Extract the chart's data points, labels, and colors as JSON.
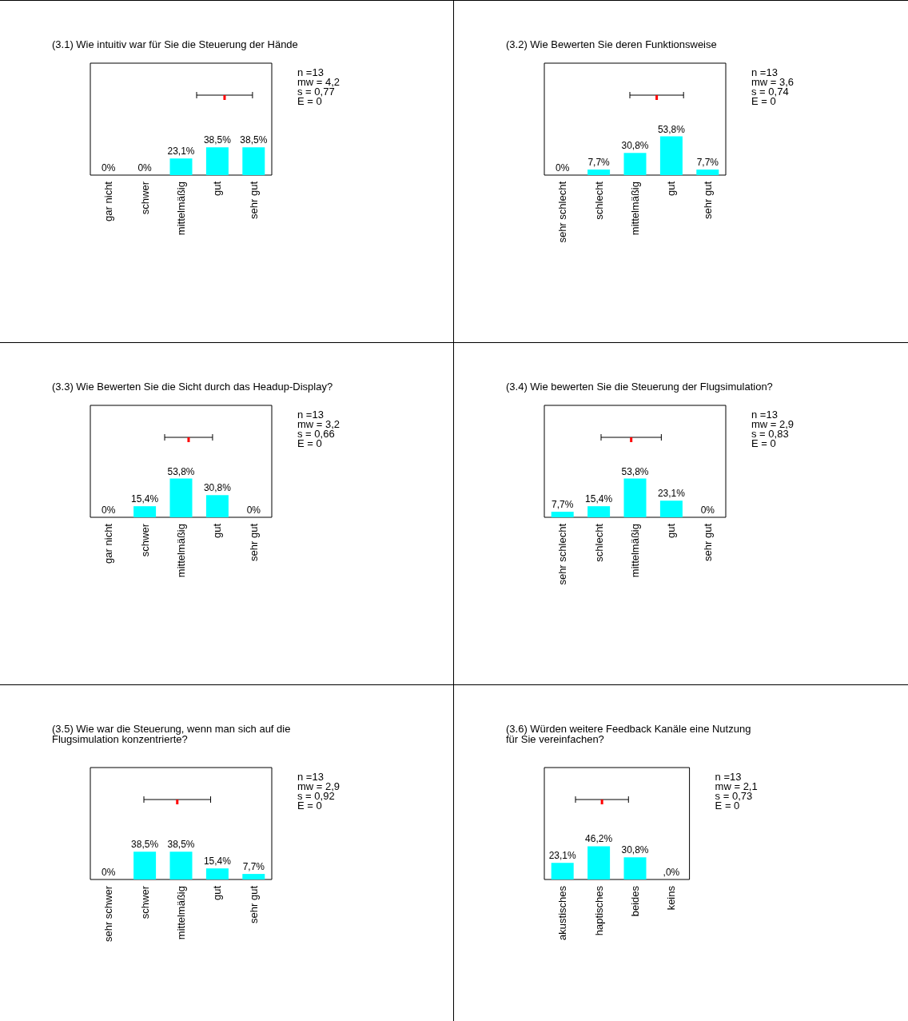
{
  "chart_data": [
    {
      "type": "bar",
      "title": "(3.1) Wie intuitiv war für Sie die Steuerung der Hände",
      "categories": [
        "gar nicht",
        "schwer",
        "mittelmäßig",
        "gut",
        "sehr gut"
      ],
      "tick_labels": "x",
      "annotations": [
        "n =13",
        "mw = 4,2",
        "s = 0,77",
        "E = 0"
      ],
      "series": [
        {
          "color": "#00ffff",
          "values": [
            0,
            0,
            23.1,
            38.5,
            38.5
          ],
          "value_labels": [
            "0%",
            "0%",
            "23,1%",
            "38,5%",
            "38,5%"
          ]
        }
      ]
    },
    {
      "type": "bar",
      "title": "(3.2) Wie Bewerten Sie deren Funktionsweise",
      "categories": [
        "sehr schlecht",
        "schlecht",
        "mittelmäßig",
        "gut",
        "sehr gut"
      ],
      "tick_labels": "x",
      "annotations": [
        "n =13",
        "mw = 3,6",
        "s = 0,74",
        "E = 0"
      ],
      "series": [
        {
          "color": "#00ffff",
          "values": [
            0,
            7.7,
            30.8,
            53.8,
            7.7
          ],
          "value_labels": [
            "0%",
            "7,7%",
            "30,8%",
            "53,8%",
            "7,7%"
          ]
        }
      ]
    },
    {
      "type": "bar",
      "title": "(3.3) Wie Bewerten Sie die Sicht durch das Headup-Display?",
      "categories": [
        "gar nicht",
        "schwer",
        "mittelmäßig",
        "gut",
        "sehr gut"
      ],
      "tick_labels": "x",
      "annotations": [
        "n =13",
        "mw = 3,2",
        "s = 0,66",
        "E = 0"
      ],
      "series": [
        {
          "color": "#00ffff",
          "values": [
            0,
            15.4,
            53.8,
            30.8,
            0
          ],
          "value_labels": [
            "0%",
            "15,4%",
            "53,8%",
            "30,8%",
            "0%"
          ]
        }
      ]
    },
    {
      "type": "bar",
      "title": "(3.4) Wie bewerten Sie die Steuerung der Flugsimulation?",
      "categories": [
        "sehr schlecht",
        "schlecht",
        "mittelmäßig",
        "gut",
        "sehr gut"
      ],
      "tick_labels": "x",
      "annotations": [
        "n =13",
        "mw = 2,9",
        "s = 0,83",
        "E = 0"
      ],
      "series": [
        {
          "color": "#00ffff",
          "values": [
            7.7,
            15.4,
            53.8,
            23.1,
            0
          ],
          "value_labels": [
            "7,7%",
            "15,4%",
            "53,8%",
            "23,1%",
            "0%"
          ]
        }
      ]
    },
    {
      "type": "bar",
      "title": "(3.5) Wie war die Steuerung, wenn man sich auf die\nFlugsimulation konzentrierte?",
      "categories": [
        "sehr schwer",
        "schwer",
        "mittelmäßig",
        "gut",
        "sehr gut"
      ],
      "tick_labels": "x",
      "annotations": [
        "n =13",
        "mw = 2,9",
        "s = 0,92",
        "E = 0"
      ],
      "series": [
        {
          "color": "#00ffff",
          "values": [
            0,
            38.5,
            38.5,
            15.4,
            7.7
          ],
          "value_labels": [
            "0%",
            "38,5%",
            "38,5%",
            "15,4%",
            "7,7%"
          ]
        }
      ]
    },
    {
      "type": "bar",
      "title": "(3.6) Würden weitere Feedback Kanäle eine Nutzung\nfür Sie vereinfachen?",
      "categories": [
        "akustisches",
        "haptisches",
        "beides",
        "keins"
      ],
      "tick_labels": "x",
      "annotations": [
        "n =13",
        "mw = 2,1",
        "s = 0,73",
        "E = 0"
      ],
      "series": [
        {
          "color": "#00ffff",
          "values": [
            23.1,
            46.2,
            30.8,
            0
          ],
          "value_labels": [
            "23,1%",
            "46,2%",
            "30,8%",
            ",0%"
          ]
        }
      ]
    }
  ]
}
